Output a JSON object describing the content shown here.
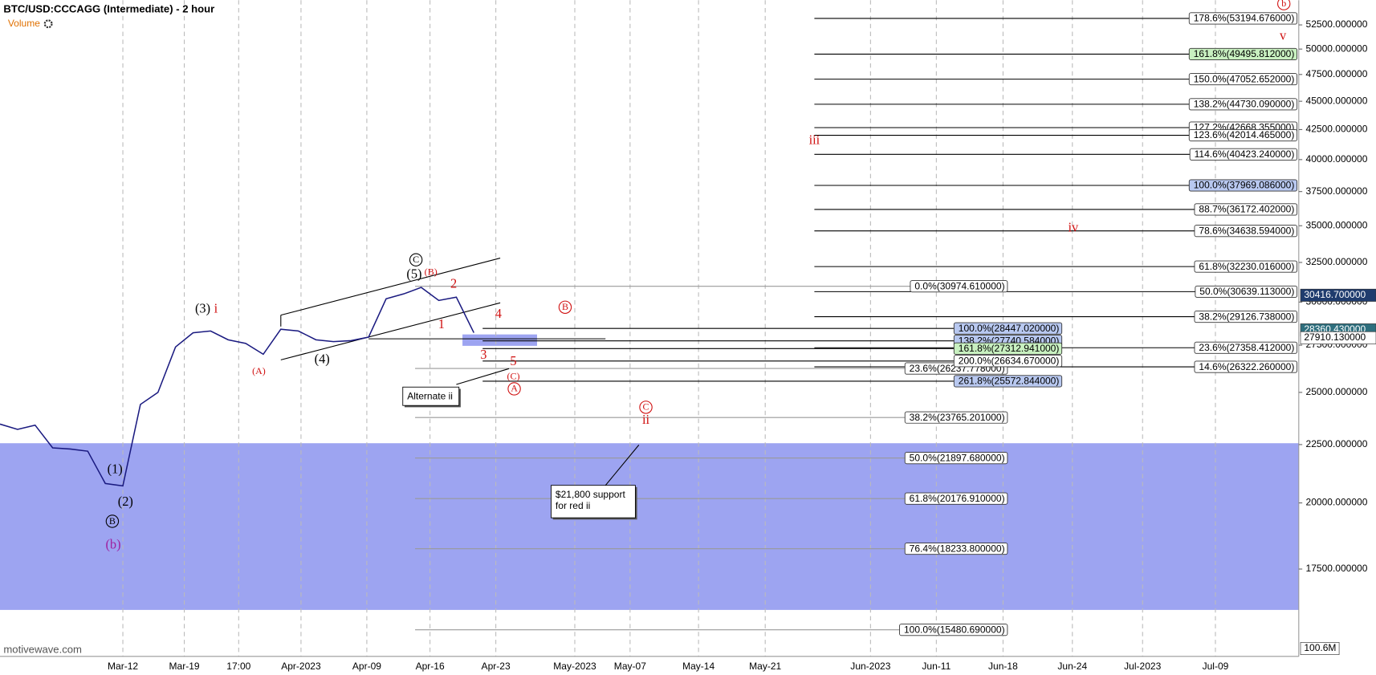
{
  "chart_data": {
    "type": "line",
    "title": "BTC/USD:CCCAGG (Intermediate) - 2 hour",
    "volume_label": "Volume",
    "watermark": "motivewave.com",
    "log_scale": true,
    "color": "#1a1a80",
    "ylim": [
      14670,
      55190
    ],
    "yticks": [
      {
        "value": 17500,
        "label": "17500.000000"
      },
      {
        "value": 20000,
        "label": "20000.000000"
      },
      {
        "value": 22500,
        "label": "22500.000000"
      },
      {
        "value": 25000,
        "label": "25000.000000"
      },
      {
        "value": 27500,
        "label": "27500.000000"
      },
      {
        "value": 30000,
        "label": "30000.000000"
      },
      {
        "value": 32500,
        "label": "32500.000000"
      },
      {
        "value": 35000,
        "label": "35000.000000"
      },
      {
        "value": 37500,
        "label": "37500.000000"
      },
      {
        "value": 40000,
        "label": "40000.000000"
      },
      {
        "value": 42500,
        "label": "42500.000000"
      },
      {
        "value": 45000,
        "label": "45000.000000"
      },
      {
        "value": 47500,
        "label": "47500.000000"
      },
      {
        "value": 50000,
        "label": "50000.000000"
      },
      {
        "value": 52500,
        "label": "52500.000000"
      }
    ],
    "xticks": [
      "Mar-12",
      "Mar-19",
      "17:00",
      "Apr-2023",
      "Apr-09",
      "Apr-16",
      "Apr-23",
      "May-2023",
      "May-07",
      "May-14",
      "May-21",
      "Jun-2023",
      "Jun-11",
      "Jun-18",
      "Jun-24",
      "Jul-2023",
      "Jul-09"
    ],
    "values": [
      23450,
      23200,
      23400,
      22350,
      22300,
      22200,
      20800,
      20700,
      24400,
      25000,
      27400,
      28200,
      28300,
      27800,
      27600,
      27000,
      28400,
      28300,
      27800,
      27700,
      27750,
      27950,
      30200,
      30500,
      30900,
      30100,
      30300,
      28200
    ],
    "fib_groups": [
      {
        "levels": [
          {
            "value": 53194.676,
            "label": "178.6%(53194.676000)"
          },
          {
            "value": 49495.812,
            "label": "161.8%(49495.812000)",
            "fill": "#c8f0c0"
          },
          {
            "value": 47052.652,
            "label": "150.0%(47052.652000)"
          },
          {
            "value": 44730.09,
            "label": "138.2%(44730.090000)"
          },
          {
            "value": 42668.355,
            "label": "127.2%(42668.355000)"
          },
          {
            "value": 42014.465,
            "label": "123.6%(42014.465000)"
          },
          {
            "value": 40423.24,
            "label": "114.6%(40423.240000)"
          },
          {
            "value": 37969.086,
            "label": "100.0%(37969.086000)",
            "fill": "#b8c8f0"
          },
          {
            "value": 36172.402,
            "label": "88.7%(36172.402000)"
          },
          {
            "value": 34638.594,
            "label": "78.6%(34638.594000)"
          },
          {
            "value": 32230.016,
            "label": "61.8%(32230.016000)"
          },
          {
            "value": 30639.113,
            "label": "50.0%(30639.113000)"
          },
          {
            "value": 29126.738,
            "label": "38.2%(29126.738000)"
          },
          {
            "value": 27358.412,
            "label": "23.6%(27358.412000)"
          },
          {
            "value": 26322.26,
            "label": "14.6%(26322.260000)"
          }
        ]
      },
      {
        "levels": [
          {
            "value": 30974.61,
            "label": "0.0%(30974.610000)"
          },
          {
            "value": 26237.778,
            "label": "23.6%(26237.778000)"
          },
          {
            "value": 23765.201,
            "label": "38.2%(23765.201000)"
          },
          {
            "value": 21897.68,
            "label": "50.0%(21897.680000)"
          },
          {
            "value": 20176.91,
            "label": "61.8%(20176.910000)"
          },
          {
            "value": 18233.8,
            "label": "76.4%(18233.800000)"
          },
          {
            "value": 15480.69,
            "label": "100.0%(15480.690000)"
          }
        ]
      },
      {
        "levels": [
          {
            "value": 28447.02,
            "label": "100.0%(28447.020000)",
            "fill": "#b8c8f0"
          },
          {
            "value": 27740.584,
            "label": "138.2%(27740.584000)",
            "fill": "#b8c8f0"
          },
          {
            "value": 27312.941,
            "label": "161.8%(27312.941000)",
            "fill": "#c8f0c0"
          },
          {
            "value": 26634.67,
            "label": "200.0%(26634.670000)"
          },
          {
            "value": 25572.844,
            "label": "261.8%(25572.844000)",
            "fill": "#b8c8f0"
          }
        ]
      }
    ],
    "price_markers": [
      {
        "value": 30416.7,
        "label": "30416.700000",
        "fill": "#1f3c6e",
        "text_color": "#ffffff"
      },
      {
        "value": 28360.43,
        "label": "28360.430000",
        "fill": "#2e6f7e",
        "text_color": "#ffffff"
      },
      {
        "value": 27910.13,
        "label": "27910.130000",
        "fill": "#ffffff",
        "text_color": "#000000"
      }
    ],
    "volume_marker": "100.6M",
    "annotations": [
      {
        "text": "(3)",
        "color": "#000000"
      },
      {
        "text": "i",
        "color": "#d01010"
      },
      {
        "text": "(A)",
        "color": "#d01010"
      },
      {
        "text": "(4)",
        "color": "#000000"
      },
      {
        "text": "(5)",
        "color": "#000000"
      },
      {
        "text": "(B)",
        "color": "#d01010"
      },
      {
        "text": "C",
        "color": "#000000"
      },
      {
        "text": "2",
        "color": "#d01010"
      },
      {
        "text": "1",
        "color": "#d01010"
      },
      {
        "text": "4",
        "color": "#d01010"
      },
      {
        "text": "3",
        "color": "#d01010"
      },
      {
        "text": "5",
        "color": "#d01010"
      },
      {
        "text": "(C)",
        "color": "#d01010"
      },
      {
        "text": "A",
        "color": "#d01010"
      },
      {
        "text": "B",
        "color": "#d01010"
      },
      {
        "text": "C",
        "color": "#d01010"
      },
      {
        "text": "ii",
        "color": "#d01010"
      },
      {
        "text": "iii",
        "color": "#d01010"
      },
      {
        "text": "iv",
        "color": "#d01010"
      },
      {
        "text": "v",
        "color": "#d01010"
      },
      {
        "text": "b",
        "color": "#d01010"
      },
      {
        "text": "(1)",
        "color": "#000000"
      },
      {
        "text": "(2)",
        "color": "#000000"
      },
      {
        "text": "B",
        "color": "#000000"
      },
      {
        "text": "(b)",
        "color": "#a020a0"
      }
    ],
    "callouts": [
      {
        "lines": [
          "Alternate ii"
        ]
      },
      {
        "lines": [
          "$21,800 support",
          "for red ii"
        ]
      }
    ]
  }
}
